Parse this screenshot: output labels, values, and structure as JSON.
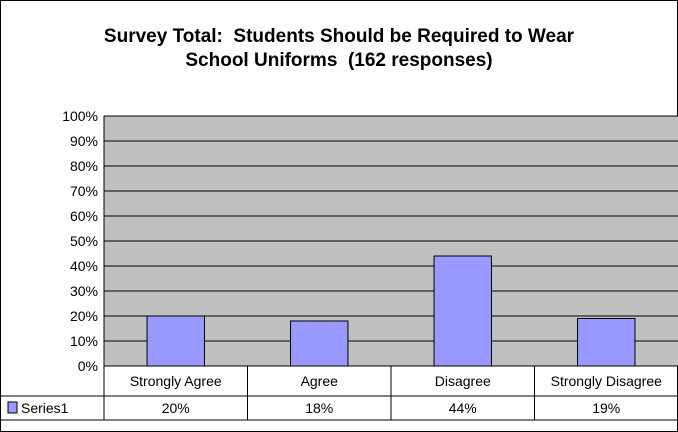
{
  "chart_data": {
    "type": "bar",
    "title_lines": [
      "Survey Total:  Students Should be Required to Wear",
      "School Uniforms  (162 responses)"
    ],
    "categories": [
      "Strongly Agree",
      "Agree",
      "Disagree",
      "Strongly Disagree"
    ],
    "series": [
      {
        "name": "Series1",
        "values": [
          20,
          18,
          44,
          19
        ]
      }
    ],
    "data_table_values": [
      "20%",
      "18%",
      "44%",
      "19%"
    ],
    "y_ticks": [
      "0%",
      "10%",
      "20%",
      "30%",
      "40%",
      "50%",
      "60%",
      "70%",
      "80%",
      "90%",
      "100%"
    ],
    "ylim": [
      0,
      100
    ],
    "y_unit": "percent",
    "grid": true,
    "legend": "in data table",
    "data_table": true,
    "colors": {
      "plot_background": "#c0c0c0",
      "bar_fill": "#9999ff",
      "grid": "#000000"
    }
  }
}
